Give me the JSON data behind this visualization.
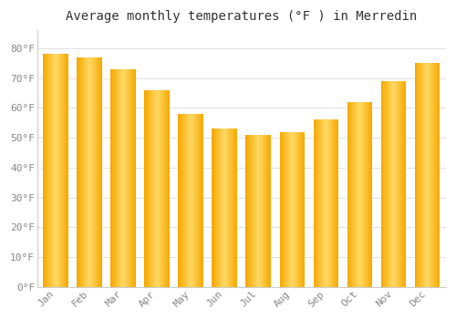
{
  "title": "Average monthly temperatures (°F ) in Merredin",
  "months": [
    "Jan",
    "Feb",
    "Mar",
    "Apr",
    "May",
    "Jun",
    "Jul",
    "Aug",
    "Sep",
    "Oct",
    "Nov",
    "Dec"
  ],
  "values": [
    78,
    77,
    73,
    66,
    58,
    53,
    51,
    52,
    56,
    62,
    69,
    75
  ],
  "bar_color_edge": "#F5A800",
  "bar_color_center": "#FFD966",
  "background_color": "#FFFFFF",
  "plot_bg_color": "#FFFFFF",
  "grid_color": "#E0E0E0",
  "yticks": [
    0,
    10,
    20,
    30,
    40,
    50,
    60,
    70,
    80
  ],
  "ylim": [
    0,
    86
  ],
  "title_fontsize": 10,
  "tick_fontsize": 8,
  "tick_color": "#888888",
  "font_family": "monospace",
  "bar_width": 0.75,
  "spine_color": "#CCCCCC"
}
